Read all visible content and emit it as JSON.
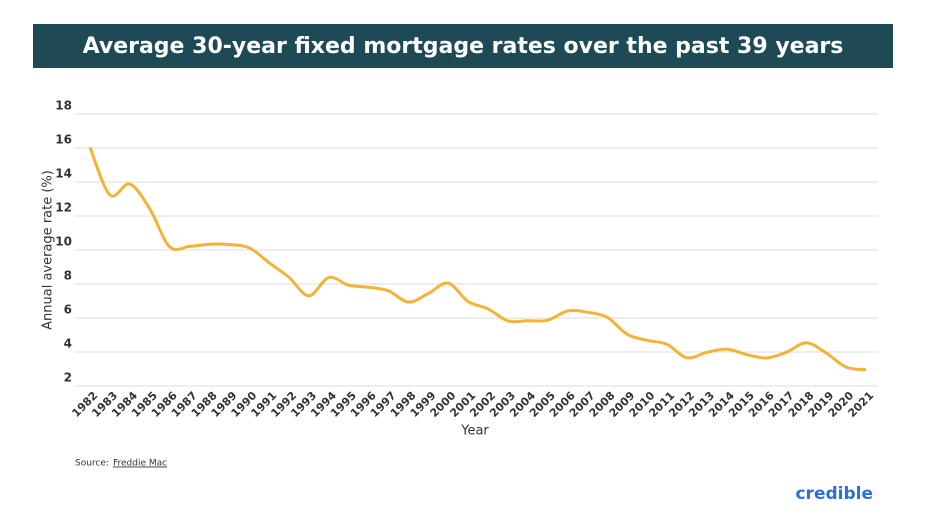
{
  "chart_data": {
    "type": "line",
    "title": "Average 30-year fixed mortgage rates over the past 39 years",
    "xlabel": "Year",
    "ylabel": "Annual average rate (%)",
    "categories": [
      "1982",
      "1983",
      "1984",
      "1985",
      "1986",
      "1987",
      "1988",
      "1989",
      "1990",
      "1991",
      "1992",
      "1993",
      "1994",
      "1995",
      "1996",
      "1997",
      "1998",
      "1999",
      "2000",
      "2001",
      "2002",
      "2003",
      "2004",
      "2005",
      "2006",
      "2007",
      "2008",
      "2009",
      "2010",
      "2011",
      "2012",
      "2013",
      "2014",
      "2015",
      "2016",
      "2017",
      "2018",
      "2019",
      "2020",
      "2021"
    ],
    "values": [
      16.04,
      13.24,
      13.88,
      12.43,
      10.19,
      10.21,
      10.34,
      10.32,
      10.13,
      9.25,
      8.39,
      7.31,
      8.38,
      7.93,
      7.81,
      7.6,
      6.94,
      7.44,
      8.05,
      6.97,
      6.54,
      5.83,
      5.84,
      5.87,
      6.41,
      6.34,
      6.03,
      5.04,
      4.69,
      4.45,
      3.66,
      3.98,
      4.17,
      3.85,
      3.65,
      3.99,
      4.54,
      3.94,
      3.11,
      2.96
    ],
    "color": "#f5b335",
    "ylim": [
      2,
      18
    ],
    "yticks": [
      2,
      4,
      6,
      8,
      10,
      12,
      14,
      16,
      18
    ],
    "grid": true
  },
  "source": {
    "label": "Source:",
    "link": "Freddie Mac"
  },
  "brand": "credible"
}
